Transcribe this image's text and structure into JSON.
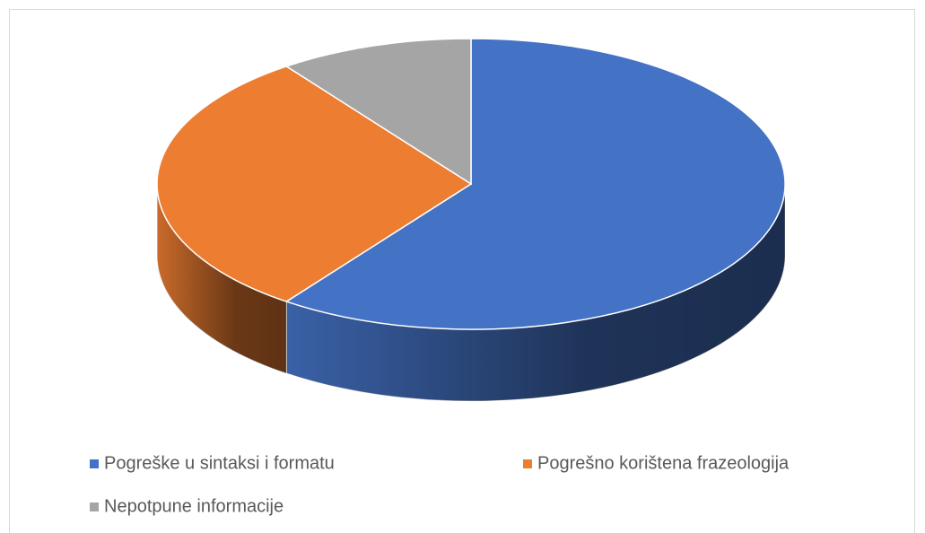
{
  "chart_data": {
    "type": "pie",
    "three_d": true,
    "categories": [
      "Pogreške u sintaksi i formatu",
      "Pogrešno korištena frazeologija",
      "Nepotpune informacije"
    ],
    "values": [
      60,
      30,
      10
    ],
    "colors": [
      "#4472c4",
      "#ed7d31",
      "#a5a5a5"
    ],
    "legend": "bottom"
  }
}
